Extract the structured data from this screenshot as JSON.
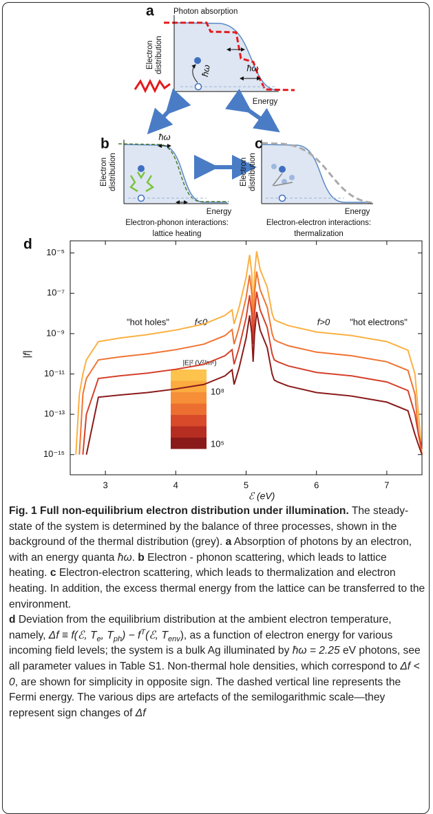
{
  "diagram": {
    "a": {
      "label": "a",
      "title": "Photon absorption",
      "ylabel": [
        "Electron",
        "distribution"
      ],
      "hw1": "ħω",
      "hw2": "ħω",
      "xlabel": "Energy"
    },
    "b": {
      "label": "b",
      "hw": "ħω",
      "ylabel": [
        "Electron",
        "distribution"
      ],
      "xlabel": "Energy",
      "caption": [
        "Electron-phonon interactions:",
        "lattice heating"
      ]
    },
    "c": {
      "label": "c",
      "ylabel": [
        "Electron",
        "distribution"
      ],
      "xlabel": "Energy",
      "caption": [
        "Electron-electron interactions:",
        "thermalization"
      ]
    }
  },
  "chart_data": {
    "type": "line",
    "panel": "d",
    "xlabel": "ℰ (eV)",
    "ylabel": "|f|",
    "annotations": [
      "\"hot holes\"",
      "f<0",
      "f>0",
      "\"hot electrons\""
    ],
    "colorbar": {
      "label": "|E|² (V²/m²)",
      "max": "10⁸",
      "min": "10⁵"
    },
    "log_y": true,
    "xlim": [
      2.5,
      7.5
    ],
    "xticks": [
      3,
      4,
      5,
      6,
      7
    ],
    "ylim": [
      1e-16,
      4e-05
    ],
    "yticks": [
      {
        "value": 1e-15,
        "label": "10⁻¹⁵"
      },
      {
        "value": 1e-13,
        "label": "10⁻¹³"
      },
      {
        "value": 1e-11,
        "label": "10⁻¹¹"
      },
      {
        "value": 1e-09,
        "label": "10⁻⁹"
      },
      {
        "value": 1e-07,
        "label": "10⁻⁷"
      },
      {
        "value": 1e-05,
        "label": "10⁻⁵"
      }
    ],
    "x": [
      2.58,
      2.63,
      2.68,
      2.73,
      2.9,
      3.2,
      3.6,
      4.0,
      4.4,
      4.7,
      4.8,
      4.83,
      4.9,
      5.0,
      5.05,
      5.08,
      5.1,
      5.12,
      5.15,
      5.2,
      5.3,
      5.37,
      5.4,
      5.45,
      5.6,
      6.0,
      6.5,
      7.0,
      7.3,
      7.4,
      7.45,
      7.5
    ],
    "series": [
      {
        "color": "#fbb040",
        "values": [
          1e-15,
          1e-12,
          1e-11,
          5e-11,
          4e-10,
          6e-10,
          9e-10,
          1.5e-09,
          3e-09,
          8e-09,
          1.5e-08,
          3e-09,
          2e-08,
          6e-07,
          8e-06,
          1e-06,
          1e-08,
          1e-06,
          1.2e-05,
          1.5e-06,
          2e-07,
          1e-08,
          5e-09,
          4e-09,
          2.5e-09,
          1.2e-09,
          8e-10,
          4e-10,
          1.5e-10,
          1e-11,
          1e-13,
          1e-15
        ]
      },
      {
        "color": "#f07432",
        "values": [
          null,
          1e-15,
          1e-12,
          6e-12,
          5e-11,
          7e-11,
          1e-10,
          1.6e-10,
          3e-10,
          8e-10,
          1.6e-09,
          3e-10,
          2e-09,
          6e-08,
          8e-07,
          1e-07,
          2e-09,
          1e-07,
          1.2e-06,
          1.5e-07,
          2e-08,
          1e-09,
          5e-10,
          4e-10,
          2.5e-10,
          1.2e-10,
          8e-11,
          4e-11,
          1.5e-11,
          1e-12,
          1e-14,
          1e-15
        ]
      },
      {
        "color": "#d4402a",
        "values": [
          null,
          null,
          1e-15,
          1e-13,
          6e-12,
          8e-12,
          1.1e-11,
          1.7e-11,
          3e-11,
          8e-11,
          1.6e-10,
          3e-11,
          2e-10,
          6e-09,
          8e-08,
          1e-08,
          3e-10,
          1e-08,
          1.2e-07,
          1.5e-08,
          2e-09,
          1e-10,
          5e-11,
          4e-11,
          2.5e-11,
          1.2e-11,
          8e-12,
          4e-12,
          1.5e-12,
          1e-13,
          1e-14,
          2e-15
        ]
      },
      {
        "color": "#8a1a1a",
        "values": [
          null,
          null,
          null,
          1e-15,
          7e-13,
          9e-13,
          1.2e-12,
          1.8e-12,
          3e-12,
          8e-12,
          1.6e-11,
          3e-12,
          2e-11,
          6e-10,
          8e-09,
          1e-09,
          4e-11,
          1e-09,
          1.2e-08,
          1.5e-09,
          2e-10,
          1e-11,
          5e-12,
          4e-12,
          2.5e-12,
          1.2e-12,
          8e-13,
          4e-13,
          1.5e-13,
          1e-14,
          3e-15,
          1e-15
        ]
      }
    ]
  },
  "caption": {
    "parts": [
      "Fig. 1 Full non-equilibrium electron distribution under illumination.",
      " The steady-state of the system is determined by the balance of three processes, shown in the background of the thermal distribution (grey). ",
      "a",
      " Absorption of photons by an electron, with an energy quanta ",
      "ħω",
      ". ",
      "b",
      " Electron - phonon scattering, which leads to lattice heating. ",
      "c",
      " Electron-electron scattering, which leads to thermalization and electron heating. In addition, the excess thermal energy from the lattice can be transferred to the environment.",
      "d",
      " Deviation from the equilibrium distribution at the ambient electron temperature, namely, ",
      "Δf ≡ f(ℰ, T",
      "e",
      ", T",
      "ph",
      ") − f",
      "T",
      "(ℰ, T",
      "env",
      "), as a function of electron energy for various incoming field levels; the system is a bulk Ag illuminated by ",
      "ħω = 2.25",
      " eV photons, see all parameter values in Table S1. Non-thermal hole densities, which correspond to ",
      "Δf < 0",
      ", are shown for simplicity in opposite sign. The dashed vertical line represents the Fermi energy. The various dips are artefacts of the semilogarithmic scale—they represent sign changes of ",
      "Δf"
    ]
  }
}
